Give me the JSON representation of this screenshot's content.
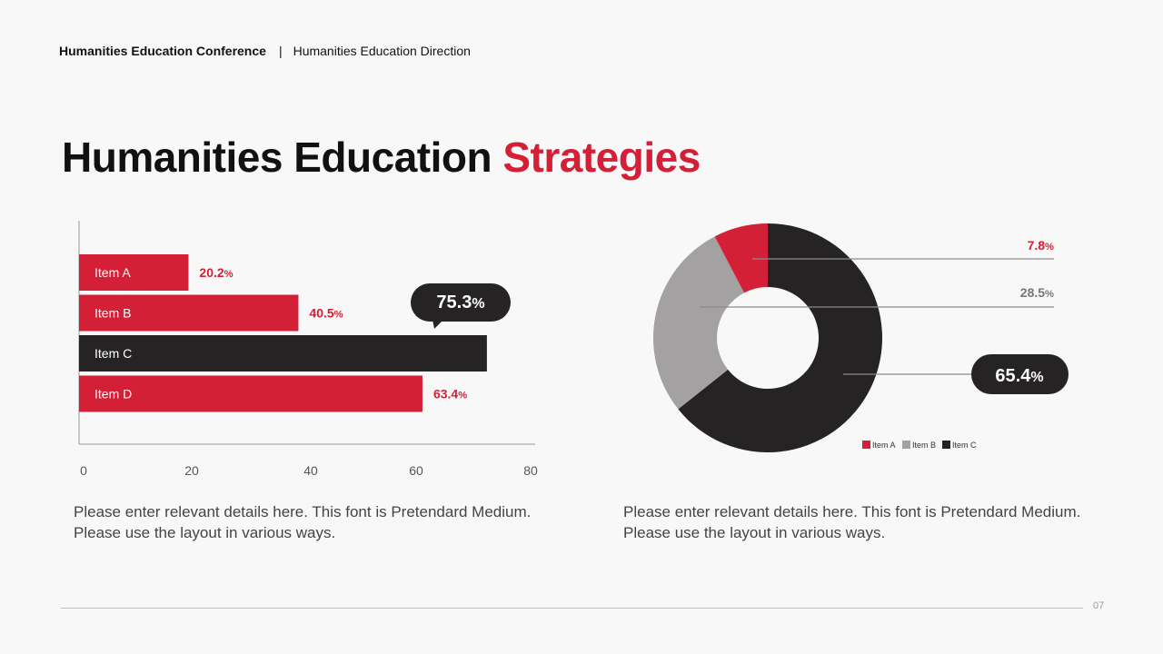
{
  "header": {
    "conference": "Humanities Education Conference",
    "separator": "|",
    "direction": "Humanities Education Direction"
  },
  "title": {
    "main": "Humanities Education",
    "accent": "Strategies"
  },
  "colors": {
    "red": "#d42037",
    "dark": "#252324",
    "gray": "#a3a1a2",
    "gray_text": "#777777"
  },
  "chart_data": [
    {
      "type": "bar",
      "orientation": "horizontal",
      "categories": [
        "Item A",
        "Item B",
        "Item C",
        "Item D"
      ],
      "values": [
        20.2,
        40.5,
        75.3,
        63.4
      ],
      "value_labels": [
        "20.2",
        "40.5",
        "75.3",
        "63.4"
      ],
      "unit": "%",
      "highlight_index": 2,
      "xticks": [
        "0",
        "20",
        "40",
        "60",
        "80"
      ],
      "xlim": [
        0,
        80
      ]
    },
    {
      "type": "pie",
      "style": "donut",
      "categories": [
        "Item A",
        "Item B",
        "Item C"
      ],
      "values": [
        7.8,
        28.5,
        65.4
      ],
      "value_labels": [
        "7.8",
        "28.5",
        "65.4"
      ],
      "unit": "%",
      "highlight_index": 2,
      "legend": "bottom-right"
    }
  ],
  "descriptions": {
    "left": "Please enter relevant details here. This font is Pretendard Medium. Please use the layout in various ways.",
    "right": "Please enter relevant details here. This font is Pretendard Medium. Please use the layout in various ways."
  },
  "footer": {
    "page": "07"
  }
}
